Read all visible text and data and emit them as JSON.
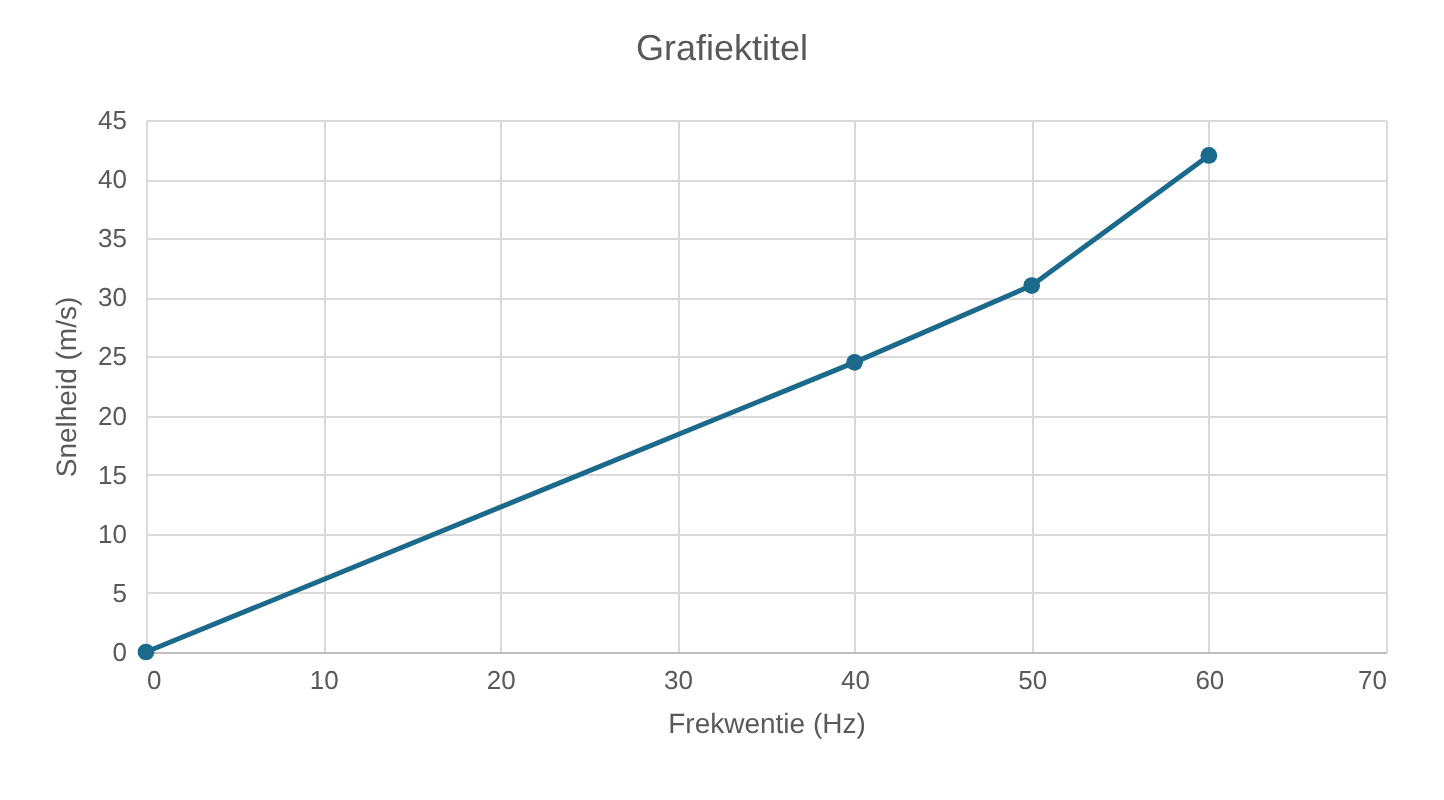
{
  "chart_data": {
    "type": "line",
    "title": "Grafiektitel",
    "xlabel": "Frekwentie (Hz)",
    "ylabel": "Snelheid (m/s)",
    "x": [
      0,
      40,
      50,
      60
    ],
    "series": [
      {
        "color": "#1b6a8b",
        "values": [
          0,
          24.5,
          31,
          42
        ]
      }
    ],
    "xlim": [
      0,
      70
    ],
    "ylim": [
      0,
      45
    ],
    "xticks": [
      0,
      10,
      20,
      30,
      40,
      50,
      60,
      70
    ],
    "yticks": [
      0,
      5,
      10,
      15,
      20,
      25,
      30,
      35,
      40,
      45
    ],
    "grid": true,
    "marker": "circle",
    "line_style": "solid"
  }
}
